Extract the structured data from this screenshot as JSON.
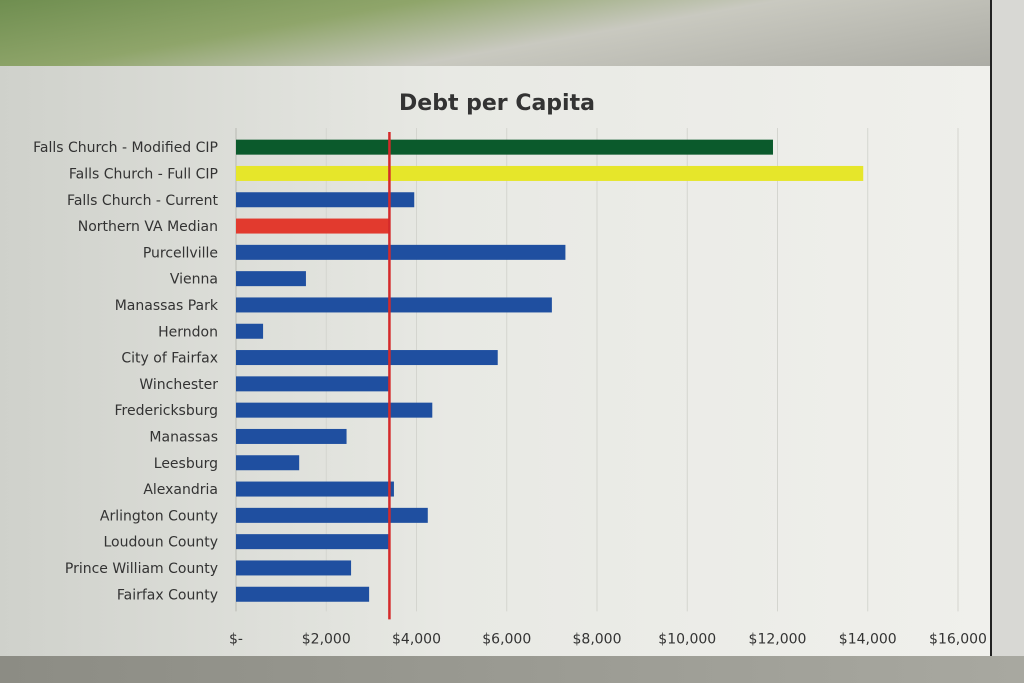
{
  "chart_data": {
    "type": "bar",
    "orientation": "horizontal",
    "title": "Debt per Capita",
    "categories": [
      "Falls Church - Modified CIP",
      "Falls Church - Full CIP",
      "Falls Church - Current",
      "Northern VA Median",
      "Purcellville",
      "Vienna",
      "Manassas Park",
      "Herndon",
      "City of Fairfax",
      "Winchester",
      "Fredericksburg",
      "Manassas",
      "Leesburg",
      "Alexandria",
      "Arlington County",
      "Loudoun County",
      "Prince William County",
      "Fairfax County"
    ],
    "values": [
      11900,
      13900,
      3950,
      3400,
      7300,
      1550,
      7000,
      600,
      5800,
      3400,
      4350,
      2450,
      1400,
      3500,
      4250,
      3400,
      2550,
      2950
    ],
    "bar_colors": [
      "#0b5a2c",
      "#e6e62a",
      "#1f4fa0",
      "#e23a2e",
      "#1f4fa0",
      "#1f4fa0",
      "#1f4fa0",
      "#1f4fa0",
      "#1f4fa0",
      "#1f4fa0",
      "#1f4fa0",
      "#1f4fa0",
      "#1f4fa0",
      "#1f4fa0",
      "#1f4fa0",
      "#1f4fa0",
      "#1f4fa0",
      "#1f4fa0"
    ],
    "reference_line": {
      "value": 3400,
      "color": "#d42a2a"
    },
    "xlim": [
      0,
      16000
    ],
    "x_ticks": [
      0,
      2000,
      4000,
      6000,
      8000,
      10000,
      12000,
      14000,
      16000
    ],
    "x_tick_labels": [
      "$-",
      "$2,000",
      "$4,000",
      "$6,000",
      "$8,000",
      "$10,000",
      "$12,000",
      "$14,000",
      "$16,000"
    ],
    "grid": true
  }
}
